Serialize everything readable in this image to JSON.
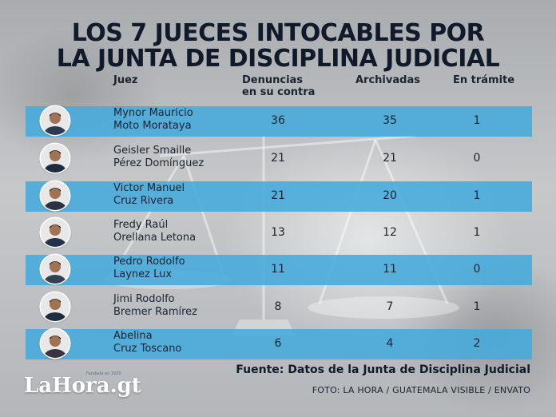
{
  "title_line1": "LOS 7 JUECES  INTOCABLES POR",
  "title_line2": "LA JUNTA DE DISCIPLINA JUDICIAL",
  "headers": {
    "judge": "Juez",
    "complaints_line1": "Denuncias",
    "complaints_line2": "en su contra",
    "archived": "Archivadas",
    "pending": "En trámite"
  },
  "chart_data": {
    "type": "table",
    "title": "LOS 7 JUECES  INTOCABLES POR LA JUNTA DE DISCIPLINA JUDICIAL",
    "columns": [
      "Juez",
      "Denuncias en su contra",
      "Archivadas",
      "En trámite"
    ],
    "rows": [
      {
        "name_line1": "Mynor Mauricio",
        "name_line2": "Moto Morataya",
        "complaints": 36,
        "archived": 35,
        "pending": 1
      },
      {
        "name_line1": "Geisler Smaille",
        "name_line2": "Pérez Domínguez",
        "complaints": 21,
        "archived": 21,
        "pending": 0
      },
      {
        "name_line1": "Victor Manuel",
        "name_line2": "Cruz Rivera",
        "complaints": 21,
        "archived": 20,
        "pending": 1
      },
      {
        "name_line1": "Fredy Raúl",
        "name_line2": "Orellana Letona",
        "complaints": 13,
        "archived": 12,
        "pending": 1
      },
      {
        "name_line1": "Pedro Rodolfo",
        "name_line2": "Laynez Lux",
        "complaints": 11,
        "archived": 11,
        "pending": 0
      },
      {
        "name_line1": "Jimi Rodolfo",
        "name_line2": "Bremer Ramírez",
        "complaints": 8,
        "archived": 7,
        "pending": 1
      },
      {
        "name_line1": "Abelina",
        "name_line2": "Cruz Toscano",
        "complaints": 6,
        "archived": 4,
        "pending": 2
      }
    ]
  },
  "source": "Fuente: Datos de la Junta de Disciplina Judicial",
  "credit": "FOTO:  LA HORA /  GUATEMALA VISIBLE / ENVATO",
  "logo": {
    "text": "LaHora.gt",
    "tagline": "Fundada en 1920"
  },
  "colors": {
    "band": "#46aadc",
    "title": "#111a2a",
    "text": "#1a2330"
  }
}
